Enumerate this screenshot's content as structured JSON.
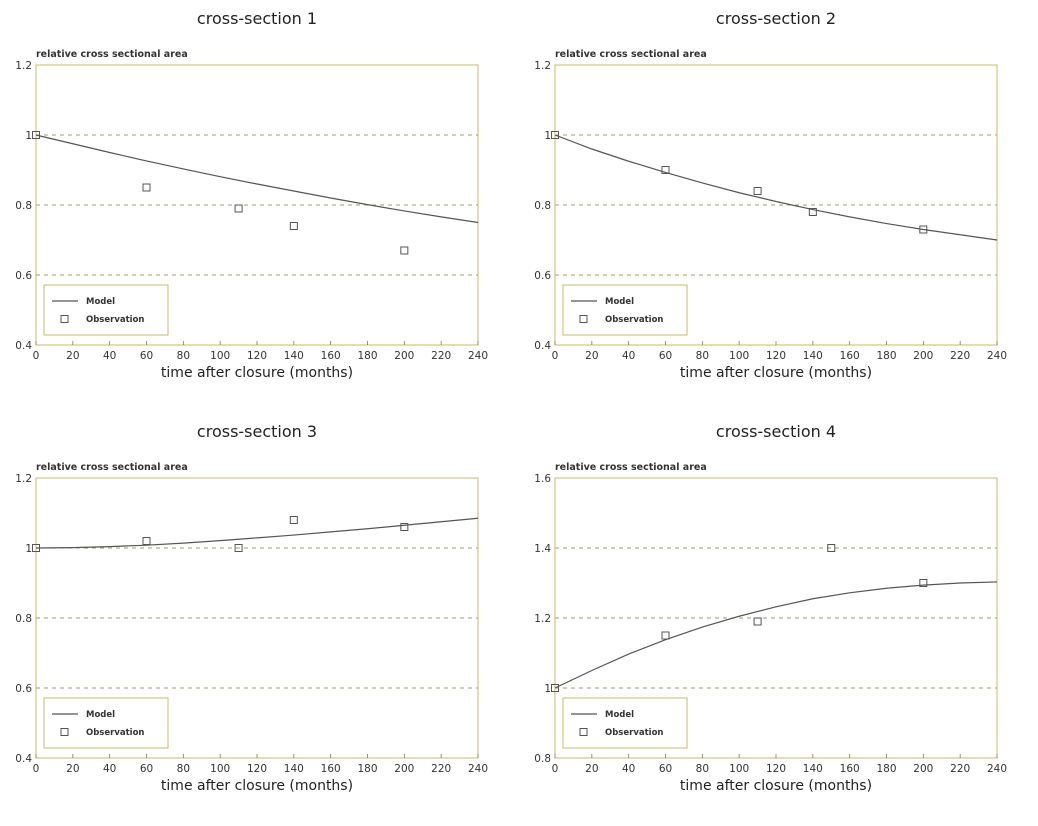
{
  "chart_data": [
    {
      "type": "line",
      "title": "cross-section 1",
      "ylabel": "relative cross sectional area",
      "xlabel": "time after closure (months)",
      "xlim": [
        0,
        240
      ],
      "ylim": [
        0.4,
        1.2
      ],
      "xticks": [
        0,
        20,
        40,
        60,
        80,
        100,
        120,
        140,
        160,
        180,
        200,
        220,
        240
      ],
      "yticks": [
        0.4,
        0.6,
        0.8,
        1,
        1.2
      ],
      "ytick_labels": [
        "0.4",
        "0.6",
        "0.8",
        "1",
        "1.2"
      ],
      "grid_y": [
        0.6,
        0.8,
        1.0
      ],
      "legend_position": "bottom-left",
      "series": [
        {
          "name": "Model",
          "kind": "line",
          "x": [
            0,
            20,
            40,
            60,
            80,
            100,
            120,
            140,
            160,
            180,
            200,
            220,
            240
          ],
          "y": [
            1.0,
            0.975,
            0.95,
            0.926,
            0.903,
            0.881,
            0.86,
            0.84,
            0.82,
            0.801,
            0.783,
            0.766,
            0.75
          ]
        },
        {
          "name": "Observation",
          "kind": "scatter",
          "x": [
            0,
            60,
            110,
            140,
            200
          ],
          "y": [
            1.0,
            0.85,
            0.79,
            0.74,
            0.67
          ]
        }
      ]
    },
    {
      "type": "line",
      "title": "cross-section 2",
      "ylabel": "relative cross sectional area",
      "xlabel": "time after closure (months)",
      "xlim": [
        0,
        240
      ],
      "ylim": [
        0.4,
        1.2
      ],
      "xticks": [
        0,
        20,
        40,
        60,
        80,
        100,
        120,
        140,
        160,
        180,
        200,
        220,
        240
      ],
      "yticks": [
        0.4,
        0.6,
        0.8,
        1,
        1.2
      ],
      "ytick_labels": [
        "0.4",
        "0.6",
        "0.8",
        "1",
        "1.2"
      ],
      "grid_y": [
        0.6,
        0.8,
        1.0
      ],
      "legend_position": "bottom-left",
      "series": [
        {
          "name": "Model",
          "kind": "line",
          "x": [
            0,
            20,
            40,
            60,
            80,
            100,
            120,
            140,
            160,
            180,
            200,
            220,
            240
          ],
          "y": [
            1.0,
            0.96,
            0.925,
            0.893,
            0.863,
            0.835,
            0.81,
            0.787,
            0.766,
            0.747,
            0.73,
            0.715,
            0.7
          ]
        },
        {
          "name": "Observation",
          "kind": "scatter",
          "x": [
            0,
            60,
            110,
            140,
            200
          ],
          "y": [
            1.0,
            0.9,
            0.84,
            0.78,
            0.73
          ]
        }
      ]
    },
    {
      "type": "line",
      "title": "cross-section 3",
      "ylabel": "relative cross sectional area",
      "xlabel": "time after closure (months)",
      "xlim": [
        0,
        240
      ],
      "ylim": [
        0.4,
        1.2
      ],
      "xticks": [
        0,
        20,
        40,
        60,
        80,
        100,
        120,
        140,
        160,
        180,
        200,
        220,
        240
      ],
      "yticks": [
        0.4,
        0.6,
        0.8,
        1,
        1.2
      ],
      "ytick_labels": [
        "0.4",
        "0.6",
        "0.8",
        "1",
        "1.2"
      ],
      "grid_y": [
        0.6,
        0.8,
        1.0
      ],
      "legend_position": "bottom-left",
      "series": [
        {
          "name": "Model",
          "kind": "line",
          "x": [
            0,
            20,
            40,
            60,
            80,
            100,
            120,
            140,
            160,
            180,
            200,
            220,
            240
          ],
          "y": [
            1.0,
            1.001,
            1.004,
            1.008,
            1.014,
            1.021,
            1.029,
            1.037,
            1.046,
            1.055,
            1.065,
            1.075,
            1.085
          ]
        },
        {
          "name": "Observation",
          "kind": "scatter",
          "x": [
            0,
            60,
            110,
            140,
            200
          ],
          "y": [
            1.0,
            1.02,
            1.0,
            1.08,
            1.06
          ]
        }
      ]
    },
    {
      "type": "line",
      "title": "cross-section 4",
      "ylabel": "relative cross sectional area",
      "xlabel": "time after closure (months)",
      "xlim": [
        0,
        240
      ],
      "ylim": [
        0.8,
        1.6
      ],
      "xticks": [
        0,
        20,
        40,
        60,
        80,
        100,
        120,
        140,
        160,
        180,
        200,
        220,
        240
      ],
      "yticks": [
        0.8,
        1,
        1.2,
        1.4,
        1.6
      ],
      "ytick_labels": [
        "0.8",
        "1",
        "1.2",
        "1.4",
        "1.6"
      ],
      "grid_y": [
        1.0,
        1.2,
        1.4
      ],
      "legend_position": "bottom-left",
      "series": [
        {
          "name": "Model",
          "kind": "line",
          "x": [
            0,
            20,
            40,
            60,
            80,
            100,
            120,
            140,
            160,
            180,
            200,
            220,
            240
          ],
          "y": [
            1.0,
            1.05,
            1.097,
            1.138,
            1.174,
            1.205,
            1.232,
            1.255,
            1.272,
            1.285,
            1.294,
            1.3,
            1.303
          ]
        },
        {
          "name": "Observation",
          "kind": "scatter",
          "x": [
            0,
            60,
            110,
            150,
            200
          ],
          "y": [
            1.0,
            1.15,
            1.19,
            1.4,
            1.3
          ]
        }
      ]
    }
  ]
}
